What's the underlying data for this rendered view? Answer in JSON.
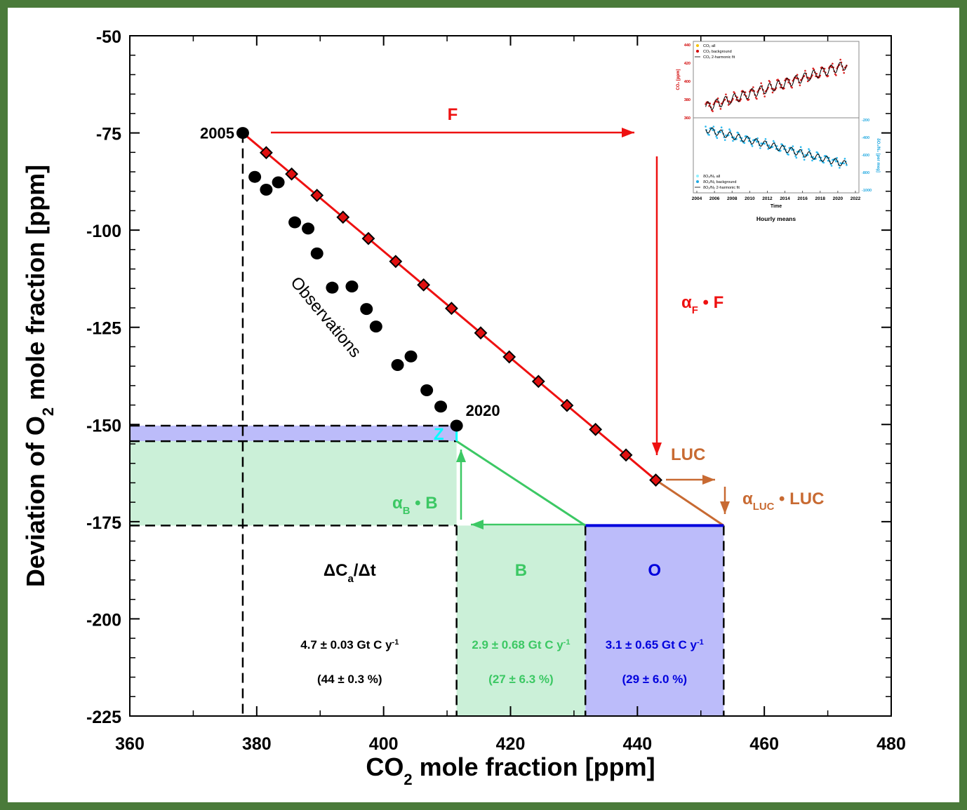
{
  "chart_data": {
    "type": "scatter",
    "xlabel": "CO2 mole fraction [ppm]",
    "ylabel": "Deviation of O2 mole fraction [ppm]",
    "xlim": [
      360,
      480
    ],
    "ylim": [
      -225,
      -50
    ],
    "x_ticks": [
      "360",
      "380",
      "400",
      "420",
      "440",
      "460",
      "480"
    ],
    "y_ticks": [
      "-50",
      "-75",
      "-100",
      "-125",
      "-150",
      "-175",
      "-200",
      "-225"
    ],
    "observations": {
      "label": "Observations",
      "start_label": "2005",
      "end_label": "2020",
      "points": [
        [
          377.8,
          -75.0
        ],
        [
          379.7,
          -86.3
        ],
        [
          381.5,
          -89.6
        ],
        [
          383.4,
          -87.7
        ],
        [
          386.0,
          -98.0
        ],
        [
          388.1,
          -99.6
        ],
        [
          389.5,
          -106.0
        ],
        [
          391.9,
          -114.8
        ],
        [
          395.0,
          -114.5
        ],
        [
          397.3,
          -120.3
        ],
        [
          398.8,
          -124.8
        ],
        [
          402.2,
          -134.7
        ],
        [
          404.3,
          -132.5
        ],
        [
          406.8,
          -141.2
        ],
        [
          409.0,
          -145.4
        ],
        [
          411.5,
          -150.3
        ]
      ]
    },
    "fossil_fuel_line": {
      "start": [
        377.8,
        -75.0
      ],
      "end": [
        442.9,
        -164.3
      ],
      "markers_x": [
        381.5,
        385.5,
        389.5,
        393.6,
        397.6,
        401.9,
        406.3,
        410.7,
        415.3,
        419.8,
        424.4,
        428.9,
        433.4,
        438.2,
        442.9
      ]
    },
    "land_use_segment": {
      "start": [
        442.9,
        -164.3
      ],
      "end": [
        453.6,
        -176.0
      ]
    },
    "biosphere_line": {
      "start": [
        431.8,
        -176.0
      ],
      "end": [
        411.5,
        -154.3
      ]
    },
    "z_segment": {
      "x": 411.5,
      "y": [
        -154.3,
        -150.3
      ]
    },
    "region_bounds_x": [
      377.8,
      411.5,
      431.8,
      453.6
    ],
    "region_bounds_y": [
      -150.3,
      -154.3,
      -176.0
    ],
    "annotations": {
      "F": "F",
      "alpha_F": "α",
      "alpha_F_sub": "F",
      "alpha_F_rest": " • F",
      "LUC": "LUC",
      "alpha_LUC": "α",
      "alpha_LUC_sub": "LUC",
      "alpha_LUC_rest": " • LUC",
      "alpha_B": "α",
      "alpha_B_sub": "B",
      "alpha_B_rest": " • B",
      "Z": "Z"
    },
    "budget": {
      "atmosphere": {
        "title": "ΔC",
        "title_sub": "a",
        "title_rest": "/Δt",
        "value": "4.7 ± 0.03 Gt C y",
        "exp": "-1",
        "percent": "(44 ± 0.3 %)"
      },
      "biosphere": {
        "title": "B",
        "value": "2.9 ± 0.68 Gt C y",
        "exp": "-1",
        "percent": "(27 ± 6.3 %)"
      },
      "ocean": {
        "title": "O",
        "value": "3.1 ± 0.65 Gt C y",
        "exp": "-1",
        "percent": "(29 ± 6.0 %)"
      }
    },
    "colors": {
      "fossil": "#ee1111",
      "land_use": "#c86a32",
      "biosphere": "#3cc864",
      "ocean": "#0000dd",
      "ocean_fill": "#bcbcfa",
      "bio_fill": "#cbf0d8",
      "z": "#00ffff",
      "frame_border": "#4a7a3a"
    },
    "inset": {
      "legend_top": [
        "CO",
        "2",
        " all",
        "CO",
        "2",
        " background",
        "CO",
        "2",
        " 2-harmonic fit"
      ],
      "legend_top_items": [
        "CO₂ all",
        "CO₂ background",
        "CO₂ 2-harmonic fit"
      ],
      "legend_bottom_items": [
        "δO₂/N₂ all",
        "δO₂/N₂ background",
        "δO₂/N₂ 2-harmonic fit"
      ],
      "xlabel": "Time",
      "caption": "Hourly means",
      "left_axis_label": "CO₂ [ppm]",
      "right_axis_label": "δO₂/N₂ [per meg]",
      "x_ticks": [
        "2004",
        "2006",
        "2008",
        "2010",
        "2012",
        "2014",
        "2016",
        "2018",
        "2020",
        "2022"
      ],
      "left_ticks": [
        "440",
        "420",
        "400",
        "380",
        "360"
      ],
      "right_ticks": [
        "-200",
        "-400",
        "-600",
        "-800",
        "-1000"
      ],
      "co2_range": [
        372,
        418
      ],
      "o2_range": [
        -310,
        -690
      ]
    }
  }
}
